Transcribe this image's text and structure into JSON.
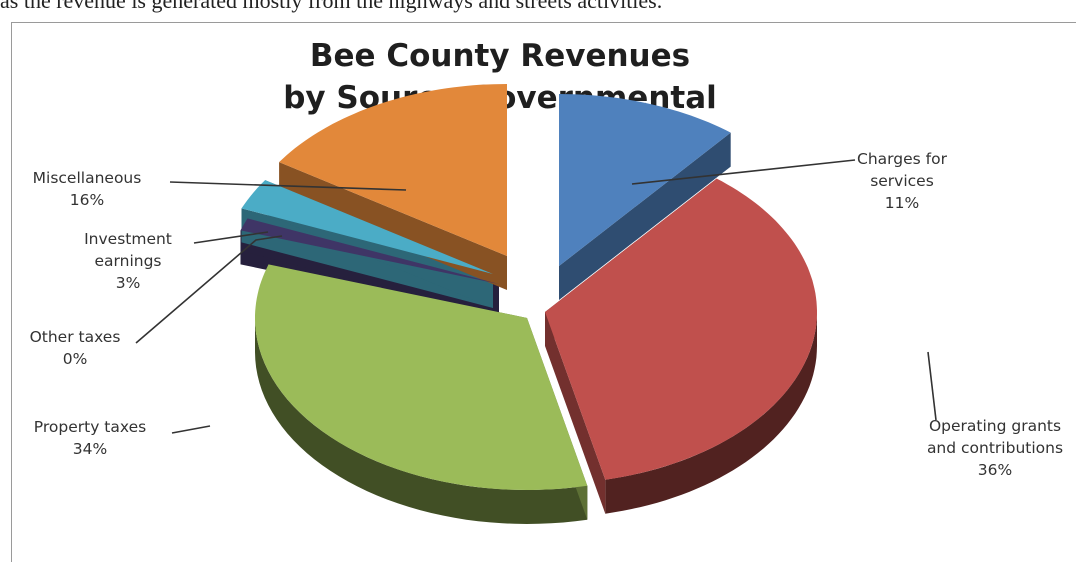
{
  "caption": "as the revenue is generated mostly from the highways and streets activities.",
  "chart_data": {
    "type": "pie",
    "title": [
      "Bee County Revenues",
      "by Source-Governmental"
    ],
    "slices": [
      {
        "label": [
          "Charges for",
          "services"
        ],
        "percent_label": "11%",
        "value": 11,
        "color": "#4f81bd"
      },
      {
        "label": [
          "Operating grants",
          "and contributions"
        ],
        "percent_label": "36%",
        "value": 36,
        "color": "#c0504d"
      },
      {
        "label": [
          "Property taxes"
        ],
        "percent_label": "34%",
        "value": 34,
        "color": "#9bbb59"
      },
      {
        "label": [
          "Other taxes"
        ],
        "percent_label": "0%",
        "value": 0,
        "color": "#3f3566"
      },
      {
        "label": [
          "Investment",
          "earnings"
        ],
        "percent_label": "3%",
        "value": 3,
        "color": "#4bacc6"
      },
      {
        "label": [
          "Miscellaneous"
        ],
        "percent_label": "16%",
        "value": 16,
        "color": "#e2883a"
      }
    ],
    "exploded": true,
    "three_d": true
  }
}
